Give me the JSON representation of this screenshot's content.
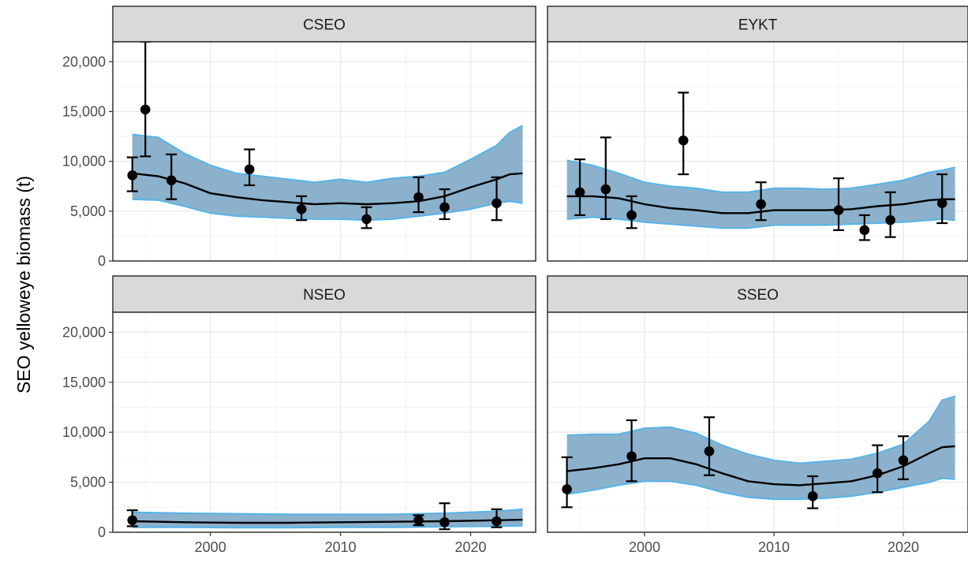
{
  "chart_data": {
    "type": "line",
    "ylabel": "SEO yelloweye biomass (t)",
    "xlabel": "",
    "xlim": [
      1992.5,
      2025
    ],
    "ylim": [
      0,
      22000
    ],
    "x_ticks": [
      2000,
      2010,
      2020
    ],
    "x_tick_labels": [
      "2000",
      "2010",
      "2020"
    ],
    "y_ticks": [
      0,
      5000,
      10000,
      15000,
      20000
    ],
    "y_tick_labels": [
      "0",
      "5,000",
      "10,000",
      "15,000",
      "20,000"
    ],
    "grid": true,
    "colors": {
      "ribbon_fill": "#8bb1cc",
      "ribbon_edge": "#56b4e9",
      "line": "#000000",
      "points": "#000000"
    },
    "panels": [
      {
        "name": "CSEO",
        "estimate": {
          "x": [
            1994,
            1996,
            1998,
            2000,
            2002,
            2004,
            2006,
            2008,
            2010,
            2012,
            2014,
            2016,
            2018,
            2020,
            2022,
            2023,
            2024
          ],
          "mean": [
            8800,
            8500,
            7800,
            6800,
            6400,
            6100,
            5900,
            5700,
            5800,
            5700,
            5800,
            6000,
            6500,
            7400,
            8200,
            8700,
            8800
          ],
          "lower": [
            6200,
            6100,
            5500,
            4800,
            4500,
            4400,
            4300,
            4200,
            4200,
            4100,
            4200,
            4500,
            4800,
            5200,
            5800,
            6000,
            5800
          ],
          "upper": [
            12700,
            12400,
            10800,
            9600,
            8800,
            8500,
            8200,
            7900,
            8200,
            7900,
            8300,
            8500,
            8900,
            10200,
            11600,
            12900,
            13600
          ]
        },
        "observations": {
          "x": [
            1994,
            1995,
            1997,
            2003,
            2007,
            2012,
            2016,
            2018,
            2022
          ],
          "y": [
            8600,
            15200,
            8100,
            9200,
            5200,
            4200,
            6400,
            5400,
            5800
          ],
          "lower": [
            7000,
            10500,
            6200,
            7600,
            4100,
            3300,
            4900,
            4200,
            4100
          ],
          "upper": [
            10400,
            22000,
            10700,
            11200,
            6500,
            5400,
            8400,
            7200,
            8400
          ]
        }
      },
      {
        "name": "EYKT",
        "estimate": {
          "x": [
            1994,
            1996,
            1998,
            2000,
            2002,
            2004,
            2006,
            2008,
            2010,
            2012,
            2014,
            2016,
            2018,
            2020,
            2022,
            2023,
            2024
          ],
          "mean": [
            6500,
            6500,
            6300,
            5700,
            5300,
            5100,
            4800,
            4800,
            5100,
            5100,
            5100,
            5200,
            5500,
            5700,
            6100,
            6200,
            6200
          ],
          "lower": [
            4200,
            4400,
            4200,
            3900,
            3700,
            3500,
            3300,
            3300,
            3600,
            3600,
            3600,
            3700,
            3800,
            3900,
            4100,
            4200,
            4100
          ],
          "upper": [
            10100,
            9600,
            8800,
            7900,
            7500,
            7300,
            6900,
            6900,
            7300,
            7300,
            7200,
            7300,
            7700,
            8100,
            8900,
            9100,
            9400
          ]
        },
        "observations": {
          "x": [
            1995,
            1997,
            1999,
            2003,
            2009,
            2015,
            2017,
            2019,
            2023
          ],
          "y": [
            6900,
            7200,
            4600,
            12100,
            5700,
            5100,
            3100,
            4100,
            5800
          ],
          "lower": [
            4600,
            4200,
            3300,
            8700,
            4100,
            3100,
            2100,
            2400,
            3800
          ],
          "upper": [
            10200,
            12400,
            6500,
            16900,
            7900,
            8300,
            4600,
            6900,
            8700
          ]
        }
      },
      {
        "name": "NSEO",
        "estimate": {
          "x": [
            1994,
            1998,
            2002,
            2006,
            2010,
            2014,
            2018,
            2022,
            2024
          ],
          "mean": [
            1100,
            1000,
            950,
            950,
            1000,
            1050,
            1100,
            1200,
            1250
          ],
          "lower": [
            500,
            500,
            450,
            450,
            500,
            500,
            550,
            600,
            650
          ],
          "upper": [
            2000,
            1900,
            1850,
            1800,
            1800,
            1800,
            1900,
            2100,
            2300
          ]
        },
        "observations": {
          "x": [
            1994,
            2016,
            2018,
            2022
          ],
          "y": [
            1200,
            1200,
            1000,
            1100
          ],
          "lower": [
            600,
            700,
            300,
            500
          ],
          "upper": [
            2200,
            1700,
            2900,
            2300
          ]
        }
      },
      {
        "name": "SSEO",
        "estimate": {
          "x": [
            1994,
            1996,
            1998,
            2000,
            2002,
            2004,
            2006,
            2008,
            2010,
            2012,
            2014,
            2016,
            2018,
            2020,
            2022,
            2023,
            2024
          ],
          "mean": [
            6100,
            6400,
            6800,
            7400,
            7400,
            6800,
            5900,
            5100,
            4800,
            4700,
            4900,
            5100,
            5700,
            6600,
            7900,
            8500,
            8600
          ],
          "lower": [
            3800,
            4200,
            4700,
            5100,
            5100,
            4700,
            4000,
            3500,
            3300,
            3300,
            3400,
            3600,
            4000,
            4500,
            5000,
            5400,
            5300
          ],
          "upper": [
            9700,
            9800,
            9800,
            10400,
            10500,
            9900,
            8700,
            7800,
            7200,
            6900,
            7100,
            7300,
            7900,
            8800,
            11100,
            13200,
            13600
          ]
        },
        "observations": {
          "x": [
            1994,
            1999,
            2005,
            2013,
            2018,
            2020
          ],
          "y": [
            4300,
            7600,
            8100,
            3600,
            5900,
            7200
          ],
          "lower": [
            2500,
            5100,
            5700,
            2400,
            4000,
            5300
          ],
          "upper": [
            7500,
            11200,
            11500,
            5600,
            8700,
            9600
          ]
        }
      }
    ]
  }
}
